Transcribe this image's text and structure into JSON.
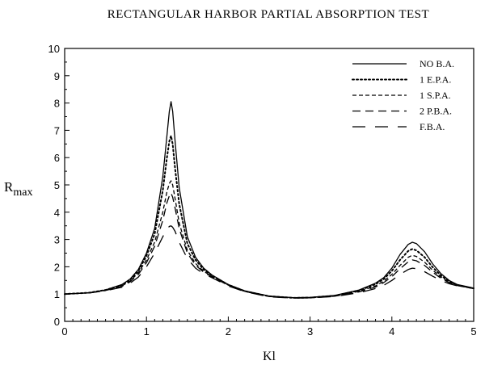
{
  "chart_data": {
    "type": "line",
    "title": "RECTANGULAR HARBOR PARTIAL ABSORPTION TEST",
    "xlabel": "Kl",
    "ylabel": {
      "main": "R",
      "sub": "max"
    },
    "xlim": [
      0,
      5
    ],
    "ylim": [
      0,
      10
    ],
    "xticks": [
      0,
      1,
      2,
      3,
      4,
      5
    ],
    "yticks": [
      0,
      1,
      2,
      3,
      4,
      5,
      6,
      7,
      8,
      9,
      10
    ],
    "grid": false,
    "legend_position": "top-right",
    "series": [
      {
        "name": "NO B.A.",
        "style": "solid",
        "x": [
          0,
          0.3,
          0.5,
          0.7,
          0.8,
          0.9,
          1.0,
          1.1,
          1.2,
          1.25,
          1.28,
          1.3,
          1.32,
          1.35,
          1.4,
          1.5,
          1.6,
          1.7,
          1.8,
          2.0,
          2.2,
          2.5,
          2.8,
          3.0,
          3.3,
          3.6,
          3.8,
          3.9,
          4.0,
          4.1,
          4.2,
          4.25,
          4.3,
          4.4,
          4.5,
          4.6,
          4.7,
          4.8,
          5.0
        ],
        "y": [
          1.0,
          1.05,
          1.15,
          1.35,
          1.55,
          1.9,
          2.5,
          3.4,
          5.3,
          6.8,
          7.7,
          8.05,
          7.7,
          6.6,
          4.9,
          3.1,
          2.35,
          1.95,
          1.7,
          1.35,
          1.12,
          0.93,
          0.87,
          0.88,
          0.95,
          1.15,
          1.4,
          1.6,
          1.95,
          2.45,
          2.82,
          2.9,
          2.85,
          2.55,
          2.1,
          1.75,
          1.5,
          1.35,
          1.22
        ]
      },
      {
        "name": "1 E.P.A.",
        "style": "dotted",
        "x": [
          0,
          0.3,
          0.5,
          0.7,
          0.8,
          0.9,
          1.0,
          1.1,
          1.2,
          1.25,
          1.28,
          1.3,
          1.32,
          1.35,
          1.4,
          1.5,
          1.6,
          1.7,
          1.8,
          2.0,
          2.2,
          2.5,
          2.8,
          3.0,
          3.3,
          3.6,
          3.8,
          3.9,
          4.0,
          4.1,
          4.2,
          4.25,
          4.3,
          4.4,
          4.5,
          4.6,
          4.7,
          4.8,
          5.0
        ],
        "y": [
          1.0,
          1.05,
          1.15,
          1.33,
          1.52,
          1.85,
          2.4,
          3.2,
          4.8,
          6.0,
          6.6,
          6.8,
          6.5,
          5.6,
          4.3,
          2.85,
          2.25,
          1.9,
          1.68,
          1.34,
          1.11,
          0.92,
          0.86,
          0.87,
          0.94,
          1.13,
          1.36,
          1.55,
          1.85,
          2.25,
          2.58,
          2.65,
          2.6,
          2.35,
          1.98,
          1.68,
          1.47,
          1.33,
          1.21
        ]
      },
      {
        "name": "1 S.P.A.",
        "style": "dashed",
        "x": [
          0,
          0.3,
          0.5,
          0.7,
          0.8,
          0.9,
          1.0,
          1.1,
          1.2,
          1.25,
          1.28,
          1.3,
          1.32,
          1.35,
          1.4,
          1.5,
          1.6,
          1.7,
          1.8,
          2.0,
          2.2,
          2.5,
          2.8,
          3.0,
          3.3,
          3.6,
          3.8,
          3.9,
          4.0,
          4.1,
          4.2,
          4.25,
          4.3,
          4.4,
          4.5,
          4.6,
          4.7,
          4.8,
          5.0
        ],
        "y": [
          1.0,
          1.05,
          1.14,
          1.3,
          1.48,
          1.78,
          2.25,
          2.9,
          4.0,
          4.75,
          5.05,
          5.15,
          5.0,
          4.5,
          3.6,
          2.6,
          2.12,
          1.83,
          1.65,
          1.33,
          1.1,
          0.91,
          0.86,
          0.87,
          0.93,
          1.1,
          1.3,
          1.47,
          1.72,
          2.05,
          2.35,
          2.42,
          2.38,
          2.17,
          1.87,
          1.62,
          1.44,
          1.32,
          1.2
        ]
      },
      {
        "name": "2 P.B.A.",
        "style": "longdash",
        "x": [
          0,
          0.3,
          0.5,
          0.7,
          0.8,
          0.9,
          1.0,
          1.1,
          1.2,
          1.25,
          1.28,
          1.3,
          1.32,
          1.35,
          1.4,
          1.5,
          1.6,
          1.7,
          1.8,
          2.0,
          2.2,
          2.5,
          2.8,
          3.0,
          3.3,
          3.6,
          3.8,
          3.9,
          4.0,
          4.1,
          4.2,
          4.25,
          4.3,
          4.4,
          4.5,
          4.6,
          4.7,
          4.8,
          5.0
        ],
        "y": [
          1.0,
          1.04,
          1.13,
          1.28,
          1.45,
          1.72,
          2.15,
          2.75,
          3.7,
          4.35,
          4.6,
          4.7,
          4.55,
          4.15,
          3.4,
          2.5,
          2.06,
          1.8,
          1.63,
          1.32,
          1.1,
          0.91,
          0.86,
          0.86,
          0.92,
          1.08,
          1.26,
          1.42,
          1.64,
          1.93,
          2.18,
          2.25,
          2.22,
          2.05,
          1.8,
          1.58,
          1.42,
          1.31,
          1.2
        ]
      },
      {
        "name": "F.B.A.",
        "style": "xlongdash",
        "x": [
          0,
          0.3,
          0.5,
          0.7,
          0.8,
          0.9,
          1.0,
          1.1,
          1.2,
          1.25,
          1.28,
          1.3,
          1.32,
          1.35,
          1.4,
          1.5,
          1.6,
          1.7,
          1.8,
          2.0,
          2.2,
          2.5,
          2.8,
          3.0,
          3.3,
          3.6,
          3.8,
          3.9,
          4.0,
          4.1,
          4.2,
          4.25,
          4.3,
          4.4,
          4.5,
          4.6,
          4.7,
          4.8,
          5.0
        ],
        "y": [
          1.0,
          1.04,
          1.12,
          1.25,
          1.4,
          1.62,
          2.0,
          2.5,
          3.1,
          3.38,
          3.48,
          3.5,
          3.45,
          3.3,
          2.9,
          2.3,
          1.95,
          1.74,
          1.6,
          1.3,
          1.09,
          0.9,
          0.85,
          0.86,
          0.91,
          1.05,
          1.2,
          1.32,
          1.5,
          1.72,
          1.9,
          1.95,
          1.93,
          1.82,
          1.65,
          1.5,
          1.38,
          1.3,
          1.2
        ]
      }
    ]
  }
}
